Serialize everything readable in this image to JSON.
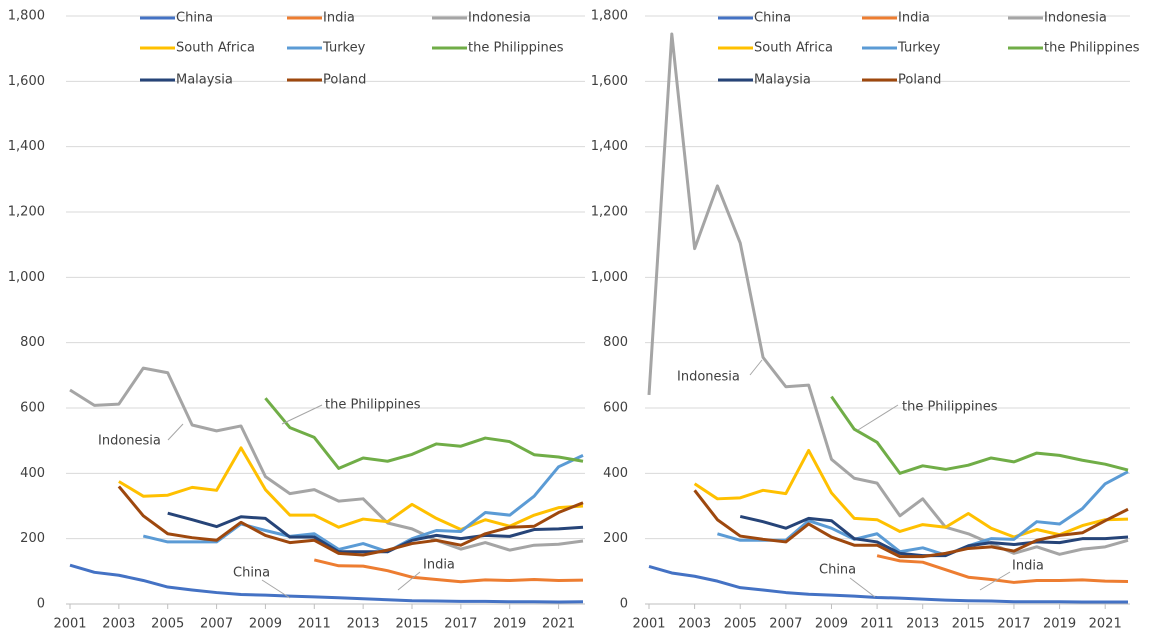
{
  "chart_data": [
    {
      "type": "line",
      "x": [
        2001,
        2002,
        2003,
        2004,
        2005,
        2006,
        2007,
        2008,
        2009,
        2010,
        2011,
        2012,
        2013,
        2014,
        2015,
        2016,
        2017,
        2018,
        2019,
        2020,
        2021,
        2022
      ],
      "xlim": [
        2001,
        2022
      ],
      "xticks": [
        2001,
        2003,
        2005,
        2007,
        2009,
        2011,
        2013,
        2015,
        2017,
        2019,
        2021
      ],
      "ylim": [
        0,
        1800
      ],
      "yticks": [
        0,
        200,
        400,
        600,
        800,
        {
          "value": 1000,
          "label": "1,000"
        },
        {
          "value": 1200,
          "label": "1,200"
        },
        {
          "value": 1400,
          "label": "1,400"
        },
        {
          "value": 1600,
          "label": "1,600"
        },
        {
          "value": 1800,
          "label": "1,800"
        }
      ],
      "grid": true,
      "legend": "top",
      "series": [
        {
          "name": "China",
          "color": "#4472c4",
          "values": [
            119,
            97,
            88,
            72,
            52,
            43,
            35,
            29,
            27,
            24,
            22,
            19,
            16,
            13,
            10,
            9,
            8,
            8,
            7,
            7,
            6,
            7
          ]
        },
        {
          "name": "India",
          "color": "#ed7d31",
          "values": [
            null,
            null,
            null,
            null,
            null,
            null,
            null,
            null,
            null,
            null,
            135,
            117,
            116,
            102,
            82,
            75,
            68,
            74,
            72,
            75,
            72,
            73
          ]
        },
        {
          "name": "Indonesia",
          "color": "#a5a5a5",
          "values": [
            655,
            608,
            612,
            722,
            708,
            548,
            530,
            545,
            390,
            338,
            350,
            315,
            322,
            248,
            230,
            195,
            168,
            188,
            165,
            180,
            183,
            193
          ]
        },
        {
          "name": "South Africa",
          "color": "#ffc000",
          "values": [
            null,
            null,
            375,
            330,
            333,
            357,
            348,
            478,
            350,
            272,
            272,
            235,
            260,
            252,
            305,
            262,
            228,
            258,
            238,
            272,
            295,
            300
          ]
        },
        {
          "name": "Turkey",
          "color": "#5b9bd5",
          "values": [
            null,
            null,
            null,
            208,
            190,
            190,
            190,
            245,
            225,
            207,
            215,
            167,
            185,
            160,
            200,
            225,
            222,
            280,
            272,
            330,
            420,
            455
          ]
        },
        {
          "name": "the Philippines",
          "color": "#70ad47",
          "values": [
            null,
            null,
            null,
            null,
            null,
            null,
            null,
            null,
            630,
            540,
            510,
            415,
            447,
            437,
            458,
            490,
            483,
            508,
            497,
            457,
            450,
            437
          ]
        },
        {
          "name": "Malaysia",
          "color": "#264478",
          "values": [
            null,
            null,
            null,
            null,
            278,
            258,
            237,
            267,
            262,
            205,
            205,
            160,
            160,
            160,
            195,
            210,
            200,
            210,
            207,
            228,
            230,
            235
          ]
        },
        {
          "name": "Poland",
          "color": "#9e480e",
          "values": [
            null,
            null,
            360,
            270,
            215,
            203,
            195,
            250,
            210,
            188,
            195,
            155,
            150,
            165,
            185,
            195,
            180,
            215,
            235,
            238,
            280,
            310
          ]
        }
      ],
      "annotations": [
        {
          "text": "Indonesia"
        },
        {
          "text": "the Philippines"
        },
        {
          "text": "India"
        },
        {
          "text": "China"
        }
      ]
    },
    {
      "type": "line",
      "x": [
        2001,
        2002,
        2003,
        2004,
        2005,
        2006,
        2007,
        2008,
        2009,
        2010,
        2011,
        2012,
        2013,
        2014,
        2015,
        2016,
        2017,
        2018,
        2019,
        2020,
        2021,
        2022
      ],
      "xlim": [
        2001,
        2022
      ],
      "xticks": [
        2001,
        2003,
        2005,
        2007,
        2009,
        2011,
        2013,
        2015,
        2017,
        2019,
        2021
      ],
      "ylim": [
        0,
        1800
      ],
      "yticks": [
        0,
        200,
        400,
        600,
        800,
        {
          "value": 1000,
          "label": "1,000"
        },
        {
          "value": 1200,
          "label": "1,200"
        },
        {
          "value": 1400,
          "label": "1,400"
        },
        {
          "value": 1600,
          "label": "1,600"
        },
        {
          "value": 1800,
          "label": "1,800"
        }
      ],
      "grid": true,
      "legend": "top",
      "series": [
        {
          "name": "China",
          "color": "#4472c4",
          "values": [
            115,
            95,
            85,
            70,
            50,
            43,
            35,
            30,
            27,
            24,
            20,
            18,
            15,
            12,
            10,
            9,
            7,
            7,
            7,
            6,
            6,
            6
          ]
        },
        {
          "name": "India",
          "color": "#ed7d31",
          "values": [
            null,
            null,
            null,
            null,
            null,
            null,
            null,
            null,
            null,
            null,
            148,
            132,
            128,
            105,
            82,
            75,
            66,
            72,
            72,
            74,
            70,
            69
          ]
        },
        {
          "name": "Indonesia",
          "color": "#a5a5a5",
          "values": [
            640,
            1745,
            1088,
            1280,
            1105,
            755,
            665,
            670,
            443,
            385,
            370,
            270,
            322,
            235,
            215,
            185,
            155,
            175,
            152,
            168,
            175,
            195
          ]
        },
        {
          "name": "South Africa",
          "color": "#ffc000",
          "values": [
            null,
            null,
            368,
            322,
            325,
            348,
            338,
            470,
            340,
            262,
            258,
            222,
            243,
            235,
            277,
            232,
            205,
            228,
            212,
            240,
            258,
            260
          ]
        },
        {
          "name": "Turkey",
          "color": "#5b9bd5",
          "values": [
            null,
            null,
            null,
            215,
            195,
            195,
            195,
            255,
            232,
            198,
            215,
            160,
            172,
            150,
            178,
            200,
            198,
            252,
            245,
            292,
            368,
            405
          ]
        },
        {
          "name": "the Philippines",
          "color": "#70ad47",
          "values": [
            null,
            null,
            null,
            null,
            null,
            null,
            null,
            null,
            635,
            535,
            495,
            400,
            423,
            412,
            425,
            447,
            435,
            462,
            455,
            440,
            428,
            410
          ]
        },
        {
          "name": "Malaysia",
          "color": "#264478",
          "values": [
            null,
            null,
            null,
            null,
            268,
            252,
            232,
            262,
            255,
            200,
            190,
            155,
            148,
            148,
            178,
            188,
            182,
            190,
            188,
            200,
            200,
            205
          ]
        },
        {
          "name": "Poland",
          "color": "#9e480e",
          "values": [
            null,
            null,
            348,
            258,
            208,
            198,
            190,
            245,
            205,
            180,
            180,
            145,
            145,
            155,
            170,
            175,
            162,
            195,
            210,
            218,
            255,
            290
          ]
        }
      ],
      "annotations": [
        {
          "text": "Indonesia"
        },
        {
          "text": "the Philippines"
        },
        {
          "text": "India"
        },
        {
          "text": "China"
        }
      ]
    }
  ]
}
